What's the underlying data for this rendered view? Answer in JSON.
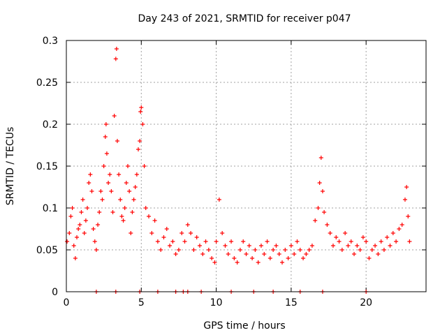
{
  "chart_data": {
    "type": "scatter",
    "title": "Day 243 of 2021, SRMTID for receiver p047",
    "xlabel": "GPS time / hours",
    "ylabel": "SRMTID / TECUs",
    "xlim": [
      0,
      24
    ],
    "ylim": [
      0,
      0.3
    ],
    "x_ticks": [
      0,
      5,
      10,
      15,
      20
    ],
    "y_ticks": [
      0,
      0.05,
      0.1,
      0.15,
      0.2,
      0.25,
      0.3
    ],
    "x_tick_labels": [
      "0",
      "5",
      "10",
      "15",
      "20"
    ],
    "y_tick_labels": [
      "0",
      "0.05",
      "0.1",
      "0.15",
      "0.2",
      "0.25",
      "0.3"
    ],
    "grid": true,
    "marker": "+",
    "color": "#ff0000",
    "series": [
      {
        "name": "SRMTID",
        "x": [
          0.05,
          0.2,
          0.3,
          0.4,
          0.5,
          0.6,
          0.7,
          0.8,
          0.9,
          1.0,
          1.1,
          1.2,
          1.3,
          1.4,
          1.5,
          1.6,
          1.7,
          1.8,
          1.9,
          2.0,
          2.1,
          2.2,
          2.3,
          2.4,
          2.5,
          2.6,
          2.65,
          2.7,
          2.8,
          2.9,
          3.0,
          3.1,
          3.2,
          3.3,
          3.35,
          3.4,
          3.5,
          3.6,
          3.7,
          3.8,
          3.9,
          4.0,
          4.1,
          4.2,
          4.3,
          4.4,
          4.5,
          4.6,
          4.7,
          4.8,
          4.9,
          4.95,
          5.0,
          5.1,
          5.2,
          5.3,
          5.5,
          5.7,
          5.9,
          6.1,
          6.3,
          6.5,
          6.7,
          6.9,
          7.1,
          7.3,
          7.5,
          7.7,
          7.9,
          8.1,
          8.3,
          8.5,
          8.7,
          8.9,
          9.1,
          9.3,
          9.5,
          9.7,
          9.9,
          10.0,
          10.2,
          10.4,
          10.6,
          10.8,
          11.0,
          11.2,
          11.4,
          11.6,
          11.8,
          12.0,
          12.2,
          12.4,
          12.6,
          12.8,
          13.0,
          13.2,
          13.4,
          13.6,
          13.8,
          14.0,
          14.2,
          14.4,
          14.6,
          14.8,
          15.0,
          15.2,
          15.4,
          15.6,
          15.8,
          16.0,
          16.2,
          16.4,
          16.6,
          16.8,
          16.9,
          17.0,
          17.1,
          17.2,
          17.4,
          17.6,
          17.8,
          18.0,
          18.2,
          18.4,
          18.6,
          18.8,
          19.0,
          19.2,
          19.4,
          19.6,
          19.8,
          20.0,
          20.2,
          20.4,
          20.6,
          20.8,
          21.0,
          21.2,
          21.4,
          21.6,
          21.8,
          22.0,
          22.2,
          22.4,
          22.6,
          22.7,
          22.8,
          22.9,
          2.0,
          3.3,
          4.9,
          6.1,
          7.3,
          7.8,
          8.1,
          9.0,
          11.0,
          12.5,
          13.8,
          15.6,
          17.1,
          20.0
        ],
        "y": [
          0.06,
          0.07,
          0.09,
          0.1,
          0.055,
          0.04,
          0.065,
          0.075,
          0.08,
          0.095,
          0.11,
          0.07,
          0.085,
          0.1,
          0.13,
          0.14,
          0.12,
          0.075,
          0.06,
          0.05,
          0.08,
          0.095,
          0.12,
          0.11,
          0.15,
          0.185,
          0.2,
          0.165,
          0.13,
          0.14,
          0.12,
          0.095,
          0.21,
          0.278,
          0.29,
          0.18,
          0.14,
          0.11,
          0.09,
          0.085,
          0.1,
          0.13,
          0.15,
          0.12,
          0.07,
          0.095,
          0.11,
          0.125,
          0.14,
          0.17,
          0.18,
          0.215,
          0.22,
          0.2,
          0.15,
          0.1,
          0.09,
          0.07,
          0.085,
          0.06,
          0.05,
          0.065,
          0.075,
          0.055,
          0.06,
          0.045,
          0.05,
          0.07,
          0.06,
          0.08,
          0.07,
          0.05,
          0.065,
          0.055,
          0.045,
          0.06,
          0.05,
          0.04,
          0.035,
          0.06,
          0.11,
          0.07,
          0.055,
          0.045,
          0.06,
          0.04,
          0.035,
          0.05,
          0.06,
          0.045,
          0.055,
          0.04,
          0.05,
          0.035,
          0.055,
          0.045,
          0.06,
          0.04,
          0.05,
          0.055,
          0.045,
          0.035,
          0.05,
          0.04,
          0.055,
          0.045,
          0.06,
          0.05,
          0.04,
          0.045,
          0.05,
          0.055,
          0.085,
          0.1,
          0.13,
          0.16,
          0.12,
          0.095,
          0.08,
          0.07,
          0.055,
          0.065,
          0.06,
          0.05,
          0.07,
          0.055,
          0.06,
          0.045,
          0.055,
          0.05,
          0.065,
          0.06,
          0.04,
          0.05,
          0.055,
          0.045,
          0.06,
          0.05,
          0.065,
          0.055,
          0.07,
          0.06,
          0.075,
          0.08,
          0.11,
          0.125,
          0.09,
          0.06,
          0,
          0,
          0,
          0,
          0,
          0,
          0,
          0,
          0,
          0,
          0,
          0,
          0,
          0
        ]
      }
    ]
  }
}
